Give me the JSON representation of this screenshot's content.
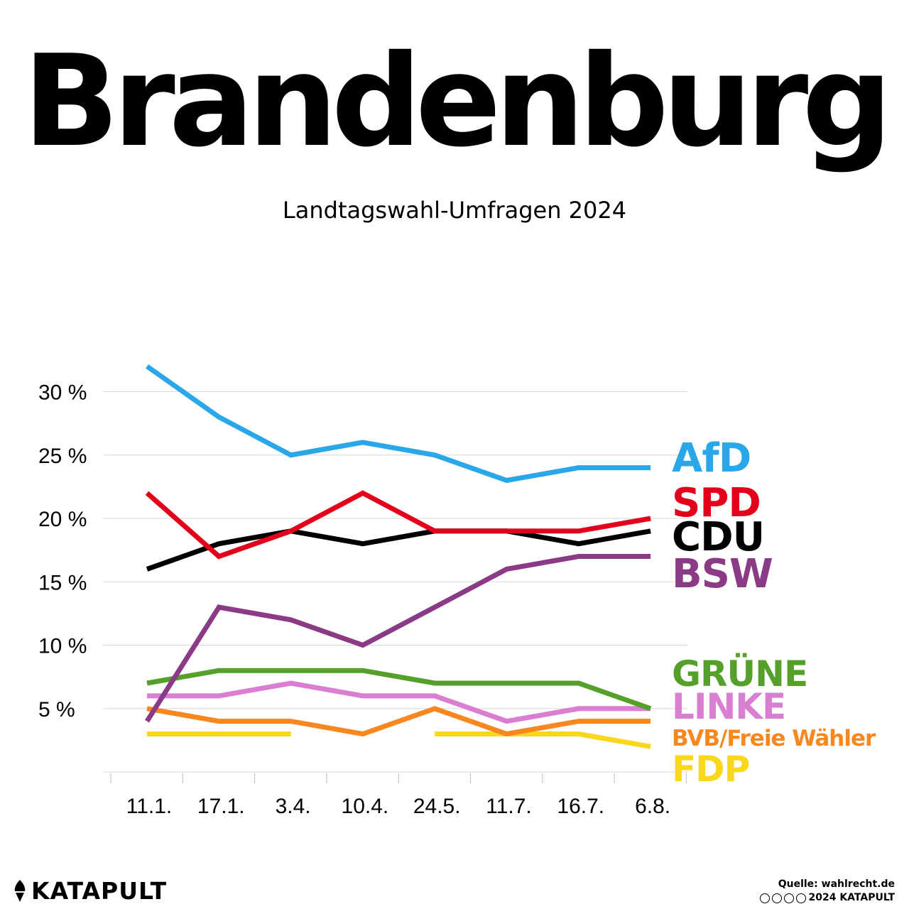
{
  "header": {
    "title": "Brandenburg",
    "subtitle": "Landtagswahl-Umfragen 2024"
  },
  "chart_data": {
    "type": "line",
    "title": "Brandenburg",
    "subtitle": "Landtagswahl-Umfragen 2024",
    "xlabel": "",
    "ylabel": "",
    "categories": [
      "11.1.",
      "17.1.",
      "3.4.",
      "10.4.",
      "24.5.",
      "11.7.",
      "16.7.",
      "6.8."
    ],
    "y_ticks": [
      {
        "value": 5,
        "label": "5 %"
      },
      {
        "value": 10,
        "label": "10 %"
      },
      {
        "value": 15,
        "label": "15 %"
      },
      {
        "value": 20,
        "label": "20 %"
      },
      {
        "value": 25,
        "label": "25 %"
      },
      {
        "value": 30,
        "label": "30 %"
      }
    ],
    "ylim": [
      0,
      30
    ],
    "grid": true,
    "legend": "right, labels at line ends",
    "series": [
      {
        "name": "AfD",
        "color": "#2aa7e8",
        "values": [
          32,
          28,
          25,
          26,
          25,
          23,
          24,
          24
        ]
      },
      {
        "name": "SPD",
        "color": "#e3001b",
        "values": [
          22,
          17,
          19,
          22,
          19,
          19,
          19,
          20
        ]
      },
      {
        "name": "CDU",
        "color": "#000000",
        "values": [
          16,
          18,
          19,
          18,
          19,
          19,
          18,
          19
        ]
      },
      {
        "name": "BSW",
        "color": "#8b3a86",
        "values": [
          4,
          13,
          12,
          10,
          13,
          16,
          17,
          17
        ]
      },
      {
        "name": "GRÜNE",
        "color": "#55a02a",
        "values": [
          7,
          8,
          8,
          8,
          7,
          7,
          7,
          5
        ]
      },
      {
        "name": "LINKE",
        "color": "#d97ed0",
        "values": [
          6,
          6,
          7,
          6,
          6,
          4,
          5,
          5
        ]
      },
      {
        "name": "BVB/Freie Wähler",
        "color": "#f7881f",
        "values": [
          5,
          4,
          4,
          3,
          5,
          3,
          4,
          4
        ]
      },
      {
        "name": "FDP",
        "color": "#f9d71c",
        "values": [
          3,
          3,
          3,
          null,
          3,
          3,
          3,
          2
        ]
      }
    ]
  },
  "footer": {
    "brand": "KATAPULT",
    "source": "Quelle: wahlrecht.de",
    "copyright": "2024 KATAPULT",
    "license_icons": [
      "cc-icon",
      "by-icon",
      "nc-icon",
      "nd-icon"
    ]
  }
}
